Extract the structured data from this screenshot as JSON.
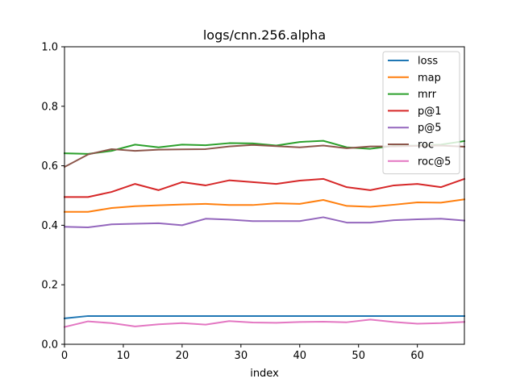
{
  "chart_data": {
    "type": "line",
    "title": "logs/cnn.256.alpha",
    "xlabel": "index",
    "ylabel": "",
    "xlim": [
      0,
      68
    ],
    "ylim": [
      0.0,
      1.0
    ],
    "xticks": [
      0,
      10,
      20,
      30,
      40,
      50,
      60
    ],
    "yticks": [
      0.0,
      0.2,
      0.4,
      0.6,
      0.8,
      1.0
    ],
    "ytick_labels": [
      "0.0",
      "0.2",
      "0.4",
      "0.6",
      "0.8",
      "1.0"
    ],
    "grid": false,
    "legend_position": "top-right",
    "x": [
      0,
      4,
      8,
      12,
      16,
      20,
      24,
      28,
      32,
      36,
      40,
      44,
      48,
      52,
      56,
      60,
      64,
      68
    ],
    "series": [
      {
        "name": "loss",
        "color": "#1f77b4",
        "values": [
          0.087,
          0.095,
          0.095,
          0.095,
          0.095,
          0.095,
          0.095,
          0.095,
          0.095,
          0.095,
          0.095,
          0.095,
          0.095,
          0.095,
          0.095,
          0.095,
          0.095,
          0.095
        ]
      },
      {
        "name": "map",
        "color": "#ff7f0e",
        "values": [
          0.445,
          0.445,
          0.458,
          0.464,
          0.467,
          0.47,
          0.472,
          0.468,
          0.468,
          0.474,
          0.472,
          0.485,
          0.465,
          0.462,
          0.469,
          0.477,
          0.476,
          0.487
        ]
      },
      {
        "name": "mrr",
        "color": "#2ca02c",
        "values": [
          0.642,
          0.64,
          0.65,
          0.671,
          0.662,
          0.671,
          0.669,
          0.676,
          0.675,
          0.668,
          0.68,
          0.684,
          0.662,
          0.657,
          0.667,
          0.668,
          0.671,
          0.683
        ]
      },
      {
        "name": "p@1",
        "color": "#d62728",
        "values": [
          0.495,
          0.495,
          0.512,
          0.539,
          0.518,
          0.545,
          0.534,
          0.551,
          0.545,
          0.539,
          0.55,
          0.556,
          0.528,
          0.518,
          0.534,
          0.539,
          0.528,
          0.556
        ]
      },
      {
        "name": "p@5",
        "color": "#9467bd",
        "values": [
          0.395,
          0.393,
          0.403,
          0.405,
          0.407,
          0.4,
          0.422,
          0.419,
          0.414,
          0.414,
          0.414,
          0.427,
          0.409,
          0.409,
          0.417,
          0.42,
          0.422,
          0.416
        ]
      },
      {
        "name": "roc",
        "color": "#8c564b",
        "values": [
          0.596,
          0.638,
          0.656,
          0.65,
          0.654,
          0.655,
          0.656,
          0.665,
          0.67,
          0.666,
          0.662,
          0.668,
          0.659,
          0.665,
          0.665,
          0.667,
          0.668,
          0.664
        ]
      },
      {
        "name": "roc@5",
        "color": "#e377c2",
        "values": [
          0.058,
          0.077,
          0.071,
          0.06,
          0.067,
          0.071,
          0.066,
          0.078,
          0.073,
          0.072,
          0.075,
          0.076,
          0.074,
          0.083,
          0.075,
          0.069,
          0.071,
          0.075
        ]
      }
    ]
  }
}
